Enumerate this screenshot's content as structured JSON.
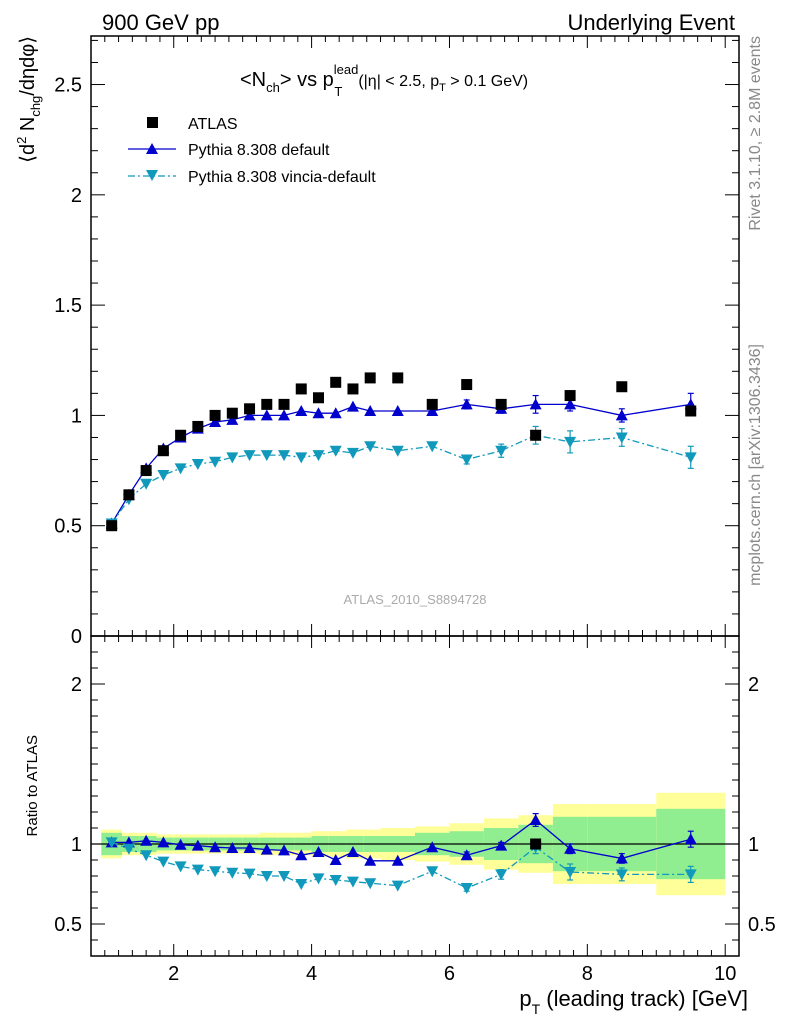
{
  "header": {
    "left": "900 GeV pp",
    "right": "Underlying Event"
  },
  "plot_title": {
    "prefix": "<N",
    "sub1": "ch",
    "mid": "> vs p",
    "sup": "lead",
    "sub2": "T",
    "cuts_a": "(|η| < 2.5, p",
    "cuts_sub": "T",
    "cuts_b": " > 0.1 GeV)"
  },
  "side_labels": {
    "top": "Rivet 3.1.10, ≥ 2.8M events",
    "bottom": "mcplots.cern.ch [arXiv:1306.3436]"
  },
  "watermark": "ATLAS_2010_S8894728",
  "ylabel_main": {
    "a": "⟨d",
    "sup": "2",
    "b": " N",
    "sub": "chg",
    "c": "/dηdφ⟩"
  },
  "ylabel_ratio": "Ratio to ATLAS",
  "xlabel": {
    "a": "p",
    "sub": "T",
    "b": " (leading track) [GeV]"
  },
  "legend": {
    "atlas": "ATLAS",
    "pythia": "Pythia 8.308 default",
    "vincia": "Pythia 8.308 vincia-default"
  },
  "colors": {
    "data": "#000000",
    "pythia": "#0000cc",
    "vincia": "#1199bb",
    "band_inner": "#90ee90",
    "band_outer": "#ffff99",
    "side_text": "#888888"
  },
  "chart_data": [
    {
      "type": "scatter",
      "panel": "main",
      "xlim": [
        0.8,
        10.2
      ],
      "ylim": [
        0,
        2.72
      ],
      "yticks": [
        0,
        0.5,
        1,
        1.5,
        2,
        2.5
      ],
      "ytick_labels": [
        "0",
        "0.5",
        "1",
        "1.5",
        "2",
        "2.5"
      ],
      "series": [
        {
          "name": "ATLAS",
          "marker": "square",
          "x": [
            1.1,
            1.35,
            1.6,
            1.85,
            2.1,
            2.35,
            2.6,
            2.85,
            3.1,
            3.35,
            3.6,
            3.85,
            4.1,
            4.35,
            4.6,
            4.85,
            5.25,
            5.75,
            6.25,
            6.75,
            7.25,
            7.75,
            8.5,
            9.5
          ],
          "y": [
            0.5,
            0.64,
            0.75,
            0.84,
            0.91,
            0.95,
            1.0,
            1.01,
            1.03,
            1.05,
            1.05,
            1.12,
            1.08,
            1.15,
            1.12,
            1.17,
            1.17,
            1.05,
            1.14,
            1.05,
            0.91,
            1.09,
            1.13,
            1.02
          ]
        },
        {
          "name": "Pythia 8.308 default",
          "marker": "triangle-up",
          "line": "solid",
          "x": [
            1.1,
            1.35,
            1.6,
            1.85,
            2.1,
            2.35,
            2.6,
            2.85,
            3.1,
            3.35,
            3.6,
            3.85,
            4.1,
            4.35,
            4.6,
            4.85,
            5.25,
            5.75,
            6.25,
            6.75,
            7.25,
            7.75,
            8.5,
            9.5
          ],
          "y": [
            0.51,
            0.64,
            0.76,
            0.85,
            0.9,
            0.94,
            0.97,
            0.98,
            1.0,
            1.0,
            1.0,
            1.02,
            1.01,
            1.01,
            1.04,
            1.02,
            1.02,
            1.02,
            1.05,
            1.03,
            1.05,
            1.05,
            1.0,
            1.05
          ],
          "yerr": [
            0,
            0,
            0,
            0,
            0,
            0,
            0,
            0,
            0,
            0,
            0,
            0,
            0,
            0,
            0,
            0,
            0,
            0,
            0.02,
            0.02,
            0.04,
            0.03,
            0.03,
            0.05
          ]
        },
        {
          "name": "Pythia 8.308 vincia-default",
          "marker": "triangle-down",
          "line": "dashdot",
          "x": [
            1.1,
            1.35,
            1.6,
            1.85,
            2.1,
            2.35,
            2.6,
            2.85,
            3.1,
            3.35,
            3.6,
            3.85,
            4.1,
            4.35,
            4.6,
            4.85,
            5.25,
            5.75,
            6.25,
            6.75,
            7.25,
            7.75,
            8.5,
            9.5
          ],
          "y": [
            0.51,
            0.62,
            0.69,
            0.73,
            0.76,
            0.78,
            0.79,
            0.81,
            0.82,
            0.82,
            0.82,
            0.81,
            0.82,
            0.84,
            0.83,
            0.86,
            0.84,
            0.86,
            0.8,
            0.84,
            0.91,
            0.88,
            0.9,
            0.81
          ],
          "yerr": [
            0,
            0,
            0,
            0,
            0,
            0,
            0,
            0,
            0,
            0,
            0,
            0,
            0,
            0,
            0,
            0,
            0,
            0,
            0.02,
            0.03,
            0.04,
            0.05,
            0.04,
            0.05
          ]
        }
      ]
    },
    {
      "type": "line",
      "panel": "ratio",
      "xlim": [
        0.8,
        10.2
      ],
      "ylim": [
        0.3,
        2.3
      ],
      "yticks": [
        0.5,
        1,
        2
      ],
      "ytick_labels": [
        "0.5",
        "1",
        "2"
      ],
      "xticks": [
        2,
        4,
        6,
        8,
        10
      ],
      "xtick_labels": [
        "2",
        "4",
        "6",
        "8",
        "10"
      ],
      "reference_line": 1,
      "bands": {
        "edges": [
          0.95,
          1.25,
          1.5,
          1.75,
          2.0,
          2.25,
          2.5,
          2.75,
          3.0,
          3.25,
          3.5,
          3.75,
          4.0,
          4.25,
          4.5,
          4.75,
          5.0,
          5.5,
          6.0,
          6.5,
          7.0,
          7.5,
          8.0,
          9.0,
          10.0
        ],
        "inner": [
          0.07,
          0.05,
          0.05,
          0.04,
          0.04,
          0.04,
          0.04,
          0.04,
          0.04,
          0.04,
          0.04,
          0.04,
          0.05,
          0.05,
          0.05,
          0.05,
          0.05,
          0.07,
          0.08,
          0.1,
          0.12,
          0.17,
          0.17,
          0.22,
          0.24
        ],
        "outer": [
          0.09,
          0.07,
          0.07,
          0.06,
          0.06,
          0.06,
          0.06,
          0.06,
          0.06,
          0.07,
          0.07,
          0.07,
          0.08,
          0.08,
          0.09,
          0.09,
          0.1,
          0.11,
          0.13,
          0.16,
          0.18,
          0.25,
          0.25,
          0.32,
          0.35
        ]
      },
      "series": [
        {
          "name": "ATLAS",
          "marker": "square",
          "x": [
            7.25
          ],
          "y": [
            1.0
          ]
        },
        {
          "name": "Pythia 8.308 default",
          "marker": "triangle-up",
          "line": "solid",
          "x": [
            1.1,
            1.35,
            1.6,
            1.85,
            2.1,
            2.35,
            2.6,
            2.85,
            3.1,
            3.35,
            3.6,
            3.85,
            4.1,
            4.35,
            4.6,
            4.85,
            5.25,
            5.75,
            6.25,
            6.75,
            7.25,
            7.75,
            8.5,
            9.5
          ],
          "y": [
            1.01,
            1.01,
            1.02,
            1.01,
            0.995,
            0.99,
            0.98,
            0.975,
            0.975,
            0.965,
            0.96,
            0.93,
            0.95,
            0.9,
            0.95,
            0.895,
            0.895,
            0.98,
            0.93,
            0.99,
            1.15,
            0.97,
            0.91,
            1.03
          ],
          "yerr": [
            0,
            0,
            0,
            0,
            0,
            0,
            0,
            0,
            0,
            0,
            0,
            0,
            0,
            0,
            0,
            0,
            0,
            0,
            0.02,
            0.02,
            0.04,
            0.03,
            0.03,
            0.05
          ]
        },
        {
          "name": "Pythia 8.308 vincia-default",
          "marker": "triangle-down",
          "line": "dashdot",
          "x": [
            1.1,
            1.35,
            1.6,
            1.85,
            2.1,
            2.35,
            2.6,
            2.85,
            3.1,
            3.35,
            3.6,
            3.85,
            4.1,
            4.35,
            4.6,
            4.85,
            5.25,
            5.75,
            6.25,
            6.75,
            7.25,
            7.75,
            8.5,
            9.5
          ],
          "y": [
            1.01,
            0.97,
            0.93,
            0.89,
            0.86,
            0.84,
            0.83,
            0.82,
            0.815,
            0.8,
            0.8,
            0.75,
            0.785,
            0.775,
            0.765,
            0.755,
            0.74,
            0.83,
            0.725,
            0.81,
            0.98,
            0.825,
            0.81,
            0.81
          ],
          "yerr": [
            0,
            0,
            0,
            0,
            0,
            0,
            0,
            0,
            0,
            0,
            0,
            0,
            0,
            0,
            0,
            0,
            0,
            0,
            0.02,
            0.03,
            0.04,
            0.05,
            0.04,
            0.05
          ]
        }
      ]
    }
  ]
}
